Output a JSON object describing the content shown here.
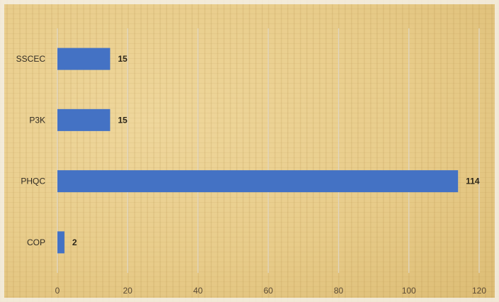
{
  "chart_data": {
    "type": "bar",
    "orientation": "horizontal",
    "categories": [
      "SSCEC",
      "P3K",
      "PHQC",
      "COP"
    ],
    "values": [
      15,
      15,
      114,
      2
    ],
    "data_labels": [
      "15",
      "15",
      "114",
      "2"
    ],
    "title": "",
    "xlabel": "",
    "ylabel": "",
    "xlim": [
      0,
      120
    ],
    "xticks": [
      "0",
      "20",
      "40",
      "60",
      "80",
      "100",
      "120"
    ],
    "grid": true,
    "legend": "none",
    "bar_color": "#4472c4"
  }
}
